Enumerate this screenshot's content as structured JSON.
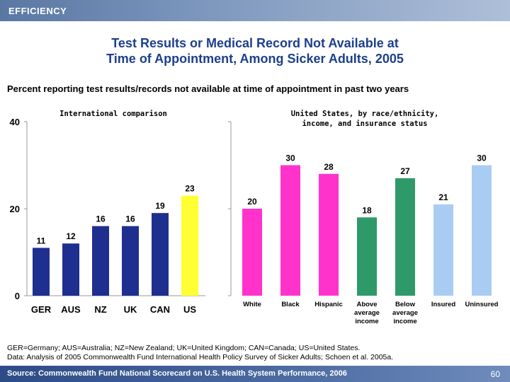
{
  "header": {
    "section_label": "EFFICIENCY"
  },
  "title_lines": [
    "Test Results or Medical Record Not Available at",
    "Time of Appointment, Among Sicker Adults, 2005"
  ],
  "subtitle": "Percent reporting test results/records not available at time of appointment in past two years",
  "panel1_title": "International comparison",
  "panel2_title_lines": [
    "United States, by race/ethnicity,",
    "income, and insurance status"
  ],
  "footnotes": [
    "GER=Germany; AUS=Australia; NZ=New Zealand; UK=United Kingdom; CAN=Canada; US=United States.",
    "Data: Analysis of 2005 Commonwealth Fund International Health Policy Survey of Sicker Adults; Schoen et al. 2005a."
  ],
  "footer": {
    "source": "Source: Commonwealth Fund National Scorecard on U.S. Health System Performance, 2006",
    "page": "60"
  },
  "chart_data": [
    {
      "type": "bar",
      "title": "International comparison",
      "categories": [
        "GER",
        "AUS",
        "NZ",
        "UK",
        "CAN",
        "US"
      ],
      "values": [
        11,
        12,
        16,
        16,
        19,
        23
      ],
      "colors": [
        "#1f2f8f",
        "#1f2f8f",
        "#1f2f8f",
        "#1f2f8f",
        "#1f2f8f",
        "#ffff33"
      ],
      "ylim": [
        0,
        40
      ],
      "yticks": [
        0,
        20,
        40
      ],
      "value_labels": [
        "11",
        "12",
        "16",
        "16",
        "19",
        "23"
      ]
    },
    {
      "type": "bar",
      "title": "United States, by race/ethnicity, income, and insurance status",
      "categories": [
        [
          "White"
        ],
        [
          "Black"
        ],
        [
          "Hispanic"
        ],
        [
          "Above",
          "average",
          "income"
        ],
        [
          "Below",
          "average",
          "income"
        ],
        [
          "Insured"
        ],
        [
          "Uninsured"
        ]
      ],
      "values": [
        20,
        30,
        28,
        18,
        27,
        21,
        30
      ],
      "colors": [
        "#ff33cc",
        "#ff33cc",
        "#ff33cc",
        "#2e9a6a",
        "#2e9a6a",
        "#a9cdf2",
        "#a9cdf2"
      ],
      "ylim": [
        0,
        40
      ],
      "value_labels": [
        "20",
        "30",
        "28",
        "18",
        "27",
        "21",
        "30"
      ]
    }
  ]
}
